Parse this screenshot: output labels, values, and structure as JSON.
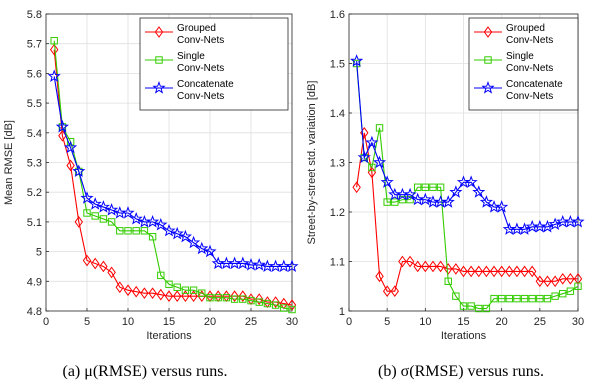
{
  "chart_data": [
    {
      "type": "line",
      "xlabel": "Iterations",
      "ylabel": "Mean RMSE [dB]",
      "xlim": [
        0,
        30
      ],
      "ylim": [
        4.8,
        5.8
      ],
      "xticks": [
        0,
        5,
        10,
        15,
        20,
        25,
        30
      ],
      "yticks": [
        4.8,
        4.9,
        5.0,
        5.1,
        5.2,
        5.3,
        5.4,
        5.5,
        5.6,
        5.7,
        5.8
      ],
      "ytick_labels": [
        "4.8",
        "4.9",
        "5",
        "5.1",
        "5.2",
        "5.3",
        "5.4",
        "5.5",
        "5.6",
        "5.7",
        "5.8"
      ],
      "grid": true,
      "legend_position": "top-right",
      "x": [
        1,
        2,
        3,
        4,
        5,
        6,
        7,
        8,
        9,
        10,
        11,
        12,
        13,
        14,
        15,
        16,
        17,
        18,
        19,
        20,
        21,
        22,
        23,
        24,
        25,
        26,
        27,
        28,
        29,
        30
      ],
      "series": [
        {
          "name": "Grouped Conv-Nets",
          "legend_lines": [
            "Grouped",
            "Conv-Nets"
          ],
          "color": "#ff0000",
          "marker": "diamond",
          "values": [
            5.68,
            5.39,
            5.29,
            5.1,
            4.97,
            4.96,
            4.95,
            4.93,
            4.88,
            4.87,
            4.865,
            4.86,
            4.86,
            4.855,
            4.85,
            4.85,
            4.85,
            4.85,
            4.85,
            4.85,
            4.85,
            4.85,
            4.85,
            4.85,
            4.84,
            4.84,
            4.83,
            4.83,
            4.825,
            4.82
          ]
        },
        {
          "name": "Single Conv-Nets",
          "legend_lines": [
            "Single",
            "Conv-Nets"
          ],
          "color": "#33cc00",
          "marker": "square",
          "values": [
            5.71,
            5.42,
            5.37,
            5.27,
            5.13,
            5.12,
            5.11,
            5.1,
            5.07,
            5.07,
            5.07,
            5.07,
            5.05,
            4.92,
            4.89,
            4.88,
            4.87,
            4.87,
            4.86,
            4.845,
            4.845,
            4.845,
            4.84,
            4.84,
            4.835,
            4.83,
            4.825,
            4.82,
            4.81,
            4.805
          ]
        },
        {
          "name": "Concatenate Conv-Nets",
          "legend_lines": [
            "Concatenate",
            "Conv-Nets"
          ],
          "color": "#0000ff",
          "marker": "star",
          "values": [
            5.59,
            5.42,
            5.35,
            5.27,
            5.18,
            5.16,
            5.15,
            5.14,
            5.13,
            5.13,
            5.11,
            5.1,
            5.1,
            5.09,
            5.07,
            5.06,
            5.05,
            5.03,
            5.01,
            5.0,
            4.96,
            4.96,
            4.96,
            4.96,
            4.955,
            4.955,
            4.95,
            4.95,
            4.95,
            4.95
          ]
        }
      ],
      "caption": "(a) μ(RMSE) versus runs."
    },
    {
      "type": "line",
      "xlabel": "Iterations",
      "ylabel": "Street-by-street std. variation [dB]",
      "xlim": [
        0,
        30
      ],
      "ylim": [
        1.0,
        1.6
      ],
      "xticks": [
        0,
        5,
        10,
        15,
        20,
        25,
        30
      ],
      "yticks": [
        1.0,
        1.1,
        1.2,
        1.3,
        1.4,
        1.5,
        1.6
      ],
      "ytick_labels": [
        "1",
        "1.1",
        "1.2",
        "1.3",
        "1.4",
        "1.5",
        "1.6"
      ],
      "grid": true,
      "legend_position": "top-right",
      "x": [
        1,
        2,
        3,
        4,
        5,
        6,
        7,
        8,
        9,
        10,
        11,
        12,
        13,
        14,
        15,
        16,
        17,
        18,
        19,
        20,
        21,
        22,
        23,
        24,
        25,
        26,
        27,
        28,
        29,
        30
      ],
      "series": [
        {
          "name": "Grouped Conv-Nets",
          "legend_lines": [
            "Grouped",
            "Conv-Nets"
          ],
          "color": "#ff0000",
          "marker": "diamond",
          "values": [
            1.25,
            1.36,
            1.28,
            1.07,
            1.04,
            1.04,
            1.1,
            1.1,
            1.09,
            1.09,
            1.09,
            1.09,
            1.085,
            1.085,
            1.08,
            1.08,
            1.08,
            1.08,
            1.08,
            1.08,
            1.08,
            1.08,
            1.08,
            1.08,
            1.06,
            1.06,
            1.06,
            1.065,
            1.065,
            1.065
          ]
        },
        {
          "name": "Single Conv-Nets",
          "legend_lines": [
            "Single",
            "Conv-Nets"
          ],
          "color": "#33cc00",
          "marker": "square",
          "values": [
            1.5,
            1.31,
            1.29,
            1.37,
            1.22,
            1.22,
            1.225,
            1.225,
            1.25,
            1.25,
            1.25,
            1.25,
            1.06,
            1.03,
            1.01,
            1.01,
            1.005,
            1.005,
            1.025,
            1.025,
            1.025,
            1.025,
            1.025,
            1.025,
            1.025,
            1.025,
            1.03,
            1.035,
            1.04,
            1.05
          ]
        },
        {
          "name": "Concatenate Conv-Nets",
          "legend_lines": [
            "Concatenate",
            "Conv-Nets"
          ],
          "color": "#0000ff",
          "marker": "star",
          "values": [
            1.505,
            1.31,
            1.34,
            1.3,
            1.26,
            1.235,
            1.235,
            1.235,
            1.225,
            1.225,
            1.22,
            1.22,
            1.22,
            1.24,
            1.26,
            1.26,
            1.24,
            1.22,
            1.21,
            1.21,
            1.165,
            1.165,
            1.165,
            1.17,
            1.17,
            1.17,
            1.175,
            1.18,
            1.18,
            1.18
          ]
        }
      ],
      "caption": "(b) σ(RMSE) versus runs."
    }
  ]
}
